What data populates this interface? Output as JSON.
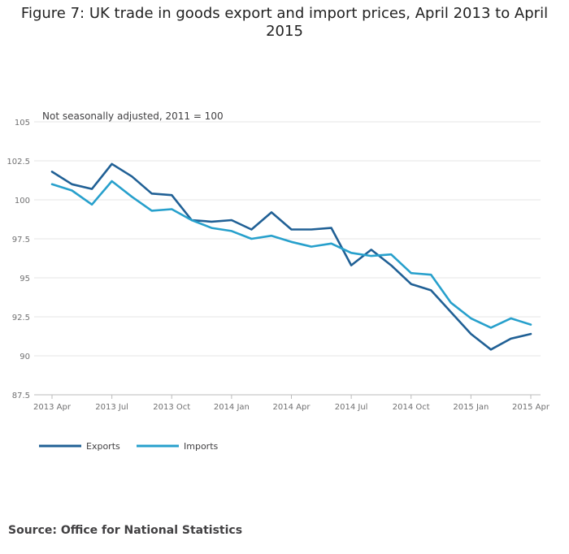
{
  "chart_data": {
    "type": "line",
    "title": "Figure 7: UK trade in goods export and import prices, April 2013 to April 2015",
    "subtitle": "Not seasonally adjusted, 2011 = 100",
    "xlabel": "",
    "ylabel": "",
    "x": [
      "2013 Apr",
      "2013 May",
      "2013 Jun",
      "2013 Jul",
      "2013 Aug",
      "2013 Sep",
      "2013 Oct",
      "2013 Nov",
      "2013 Dec",
      "2014 Jan",
      "2014 Feb",
      "2014 Mar",
      "2014 Apr",
      "2014 May",
      "2014 Jun",
      "2014 Jul",
      "2014 Aug",
      "2014 Sep",
      "2014 Oct",
      "2014 Nov",
      "2014 Dec",
      "2015 Jan",
      "2015 Feb",
      "2015 Mar",
      "2015 Apr"
    ],
    "xticks": [
      "2013 Apr",
      "2013 Jul",
      "2013 Oct",
      "2014 Jan",
      "2014 Apr",
      "2014 Jul",
      "2014 Oct",
      "2015 Jan",
      "2015 Apr"
    ],
    "xtick_indices": [
      0,
      3,
      6,
      9,
      12,
      15,
      18,
      21,
      24
    ],
    "ylim": [
      87.5,
      105
    ],
    "yticks": [
      87.5,
      90,
      92.5,
      95,
      97.5,
      100,
      102.5,
      105
    ],
    "ytick_labels": [
      "87.5",
      "90",
      "92.5",
      "95",
      "97.5",
      "100",
      "102.5",
      "105"
    ],
    "grid": true,
    "legend_position": "bottom-left",
    "series": [
      {
        "name": "Exports",
        "color": "#206095",
        "values": [
          101.8,
          101.0,
          100.7,
          102.3,
          101.5,
          100.4,
          100.3,
          98.7,
          98.6,
          98.7,
          98.1,
          99.2,
          98.1,
          98.1,
          98.2,
          95.8,
          96.8,
          95.8,
          94.6,
          94.2,
          92.8,
          91.4,
          90.4,
          91.1,
          91.4
        ]
      },
      {
        "name": "Imports",
        "color": "#27A0CC",
        "values": [
          101.0,
          100.6,
          99.7,
          101.2,
          100.2,
          99.3,
          99.4,
          98.7,
          98.2,
          98.0,
          97.5,
          97.7,
          97.3,
          97.0,
          97.2,
          96.6,
          96.4,
          96.5,
          95.3,
          95.2,
          93.4,
          92.4,
          91.8,
          92.4,
          92.0
        ]
      }
    ]
  },
  "source_text": "Source: Office for National Statistics"
}
